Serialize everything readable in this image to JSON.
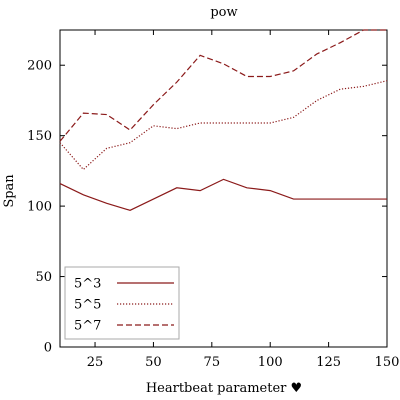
{
  "chart_data": {
    "type": "line",
    "title": "pow",
    "xlabel": "Heartbeat parameter ♥",
    "ylabel": "Span",
    "xlim": [
      10,
      150
    ],
    "ylim": [
      0,
      225
    ],
    "x_ticks": [
      25,
      50,
      75,
      100,
      125,
      150
    ],
    "y_ticks": [
      0,
      50,
      100,
      150,
      200
    ],
    "x_tick_labels": [
      "25",
      "50",
      "75",
      "100",
      "125",
      "150"
    ],
    "y_tick_labels": [
      "0",
      "50",
      "100",
      "150",
      "200"
    ],
    "legend_position": "bottom-left",
    "line_color": "#8b1a1a",
    "grid": false,
    "x": [
      10,
      20,
      30,
      40,
      50,
      60,
      70,
      80,
      90,
      100,
      110,
      120,
      130,
      140,
      150
    ],
    "series": [
      {
        "name": "5^3",
        "style": "solid",
        "values": [
          116,
          108,
          102,
          97,
          105,
          113,
          111,
          119,
          113,
          111,
          105,
          105,
          105,
          105,
          105
        ]
      },
      {
        "name": "5^5",
        "style": "dotted",
        "values": [
          145,
          126,
          141,
          145,
          157,
          155,
          159,
          159,
          159,
          159,
          163,
          175,
          183,
          185,
          189
        ]
      },
      {
        "name": "5^7",
        "style": "dashed",
        "values": [
          146,
          166,
          165,
          154,
          172,
          188,
          207,
          201,
          192,
          192,
          196,
          208,
          216,
          225,
          225
        ]
      }
    ]
  }
}
